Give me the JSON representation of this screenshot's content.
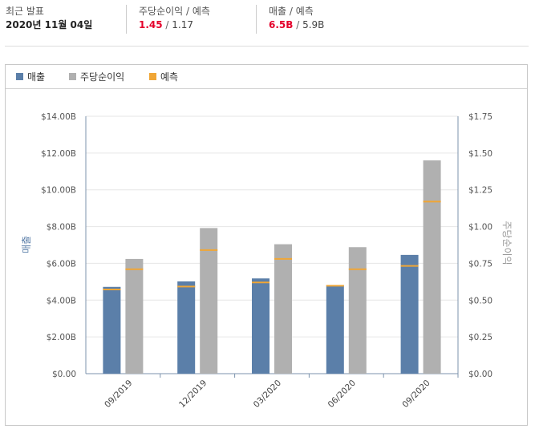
{
  "summary": {
    "latest_label": "최근 발표",
    "latest_date": "2020년 11월 04일",
    "eps_label": "주당순이익 / 예측",
    "eps_actual": "1.45",
    "eps_sep": " / ",
    "eps_estimate": "1.17",
    "rev_label": "매출 / 예측",
    "rev_actual": "6.5B",
    "rev_sep": " / ",
    "rev_estimate": "5.9B"
  },
  "legend": {
    "revenue": "매출",
    "eps": "주당순이익",
    "forecast": "예측"
  },
  "colors": {
    "revenue": "#5b7fa9",
    "eps": "#b0b0b0",
    "forecast": "#f0a636",
    "actual_highlight": "#e4002b"
  },
  "chart_data": {
    "type": "bar",
    "categories": [
      "09/2019",
      "12/2019",
      "03/2020",
      "06/2020",
      "09/2020"
    ],
    "series": [
      {
        "name": "매출",
        "axis": "left",
        "values": [
          4.72,
          5.02,
          5.18,
          4.82,
          6.46
        ],
        "forecast": [
          4.58,
          4.74,
          4.96,
          4.78,
          5.86
        ]
      },
      {
        "name": "주당순이익",
        "axis": "right",
        "values": [
          0.78,
          0.99,
          0.88,
          0.86,
          1.45
        ],
        "forecast": [
          0.71,
          0.84,
          0.78,
          0.71,
          1.17
        ]
      }
    ],
    "ylabel_left": "매출",
    "ylabel_right": "주당순이익",
    "ylim_left": [
      0,
      14
    ],
    "ylim_right": [
      0,
      1.75
    ],
    "yticks_left": [
      "$0.00",
      "$2.00B",
      "$4.00B",
      "$6.00B",
      "$8.00B",
      "$10.00B",
      "$12.00B",
      "$14.00B"
    ],
    "yticks_right": [
      "$0.00",
      "$0.25",
      "$0.50",
      "$0.75",
      "$1.00",
      "$1.25",
      "$1.50",
      "$1.75"
    ],
    "grid": true
  }
}
